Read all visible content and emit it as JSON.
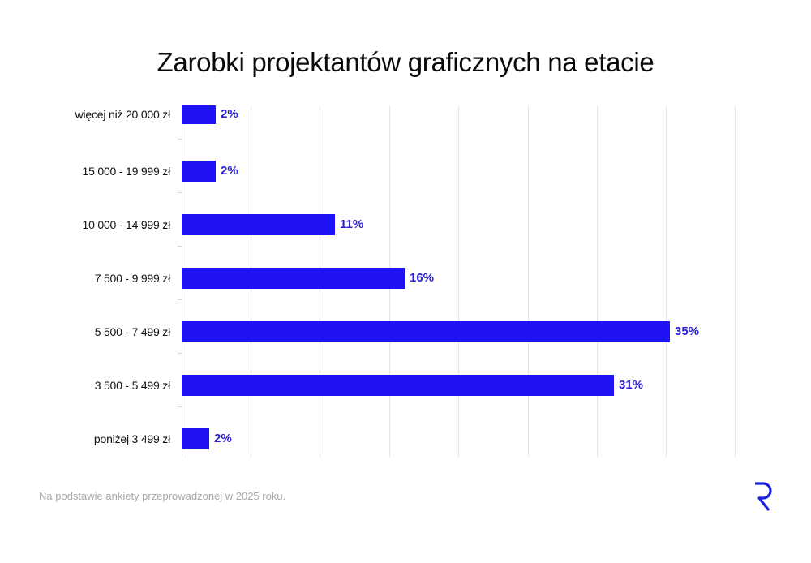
{
  "chart_data": {
    "type": "bar",
    "orientation": "horizontal",
    "title": "Zarobki projektantów graficznych na etacie",
    "xlabel": "",
    "ylabel": "",
    "categories": [
      "więcej niż 20 000 zł",
      "15 000 - 19 999 zł",
      "10 000 - 14 999 zł",
      "7 500 - 9 999 zł",
      "5 500 - 7 499 zł",
      "3 500 - 5 499 zł",
      "poniżej 3 499 zł"
    ],
    "values": [
      2,
      2,
      11,
      16,
      35,
      31,
      2
    ],
    "value_labels": [
      "2%",
      "2%",
      "11%",
      "16%",
      "35%",
      "31%",
      "2%"
    ],
    "unit": "%",
    "xlim": [
      0,
      40
    ],
    "grid": true,
    "legend": null,
    "bar_color": "#1f12f5",
    "label_color": "#2a1fd8"
  },
  "footer": {
    "note": "Na podstawie ankiety przeprowadzonej w 2025 roku.",
    "logo": "R-logo-icon"
  }
}
